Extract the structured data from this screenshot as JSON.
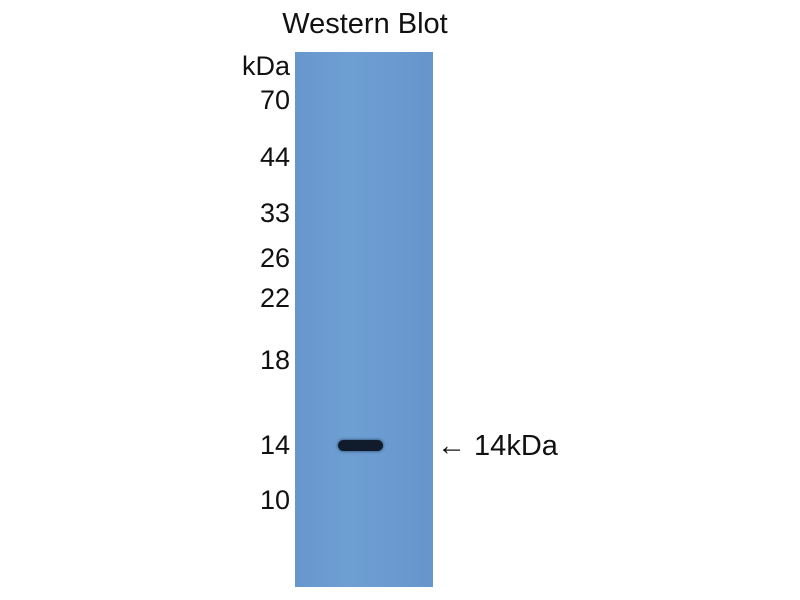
{
  "title": "Western Blot",
  "unit_label": "kDa",
  "markers": [
    "70",
    "44",
    "33",
    "26",
    "22",
    "18",
    "14",
    "10"
  ],
  "band_annotation": "← 14kDa",
  "colors": {
    "membrane": "#6a9bd0",
    "band": "#101c2c"
  }
}
